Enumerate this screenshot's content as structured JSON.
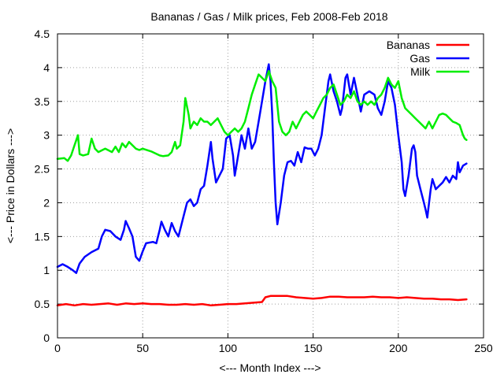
{
  "chart_data": {
    "type": "line",
    "title": "Bananas / Gas / Milk prices, Feb 2008-Feb 2018",
    "xlabel": "<--- Month Index --->",
    "ylabel": "<--- Price in Dollars --->",
    "xlim": [
      0,
      250
    ],
    "ylim": [
      0,
      4.5
    ],
    "xticks": [
      0,
      50,
      100,
      150,
      200,
      250
    ],
    "xtick_labels": [
      "0",
      "50",
      "100",
      "150",
      "200",
      "250"
    ],
    "yticks": [
      0,
      0.5,
      1,
      1.5,
      2,
      2.5,
      3,
      3.5,
      4,
      4.5
    ],
    "ytick_labels": [
      "0",
      "0.5",
      "1",
      "1.5",
      "2",
      "2.5",
      "3",
      "3.5",
      "4",
      "4.5"
    ],
    "grid": true,
    "legend_position": "top-right",
    "series": [
      {
        "name": "Bananas",
        "color": "#ff0000",
        "points": [
          [
            0,
            0.48
          ],
          [
            5,
            0.5
          ],
          [
            10,
            0.48
          ],
          [
            15,
            0.5
          ],
          [
            20,
            0.49
          ],
          [
            25,
            0.5
          ],
          [
            30,
            0.51
          ],
          [
            35,
            0.49
          ],
          [
            40,
            0.51
          ],
          [
            45,
            0.5
          ],
          [
            50,
            0.51
          ],
          [
            55,
            0.5
          ],
          [
            60,
            0.5
          ],
          [
            65,
            0.49
          ],
          [
            70,
            0.49
          ],
          [
            75,
            0.5
          ],
          [
            80,
            0.49
          ],
          [
            85,
            0.5
          ],
          [
            90,
            0.48
          ],
          [
            95,
            0.49
          ],
          [
            100,
            0.5
          ],
          [
            105,
            0.5
          ],
          [
            110,
            0.51
          ],
          [
            115,
            0.52
          ],
          [
            120,
            0.53
          ],
          [
            122,
            0.6
          ],
          [
            125,
            0.62
          ],
          [
            130,
            0.62
          ],
          [
            135,
            0.62
          ],
          [
            140,
            0.6
          ],
          [
            145,
            0.59
          ],
          [
            150,
            0.58
          ],
          [
            155,
            0.59
          ],
          [
            160,
            0.61
          ],
          [
            165,
            0.61
          ],
          [
            170,
            0.6
          ],
          [
            175,
            0.6
          ],
          [
            180,
            0.6
          ],
          [
            185,
            0.61
          ],
          [
            190,
            0.6
          ],
          [
            195,
            0.6
          ],
          [
            200,
            0.59
          ],
          [
            205,
            0.6
          ],
          [
            210,
            0.59
          ],
          [
            215,
            0.58
          ],
          [
            220,
            0.58
          ],
          [
            225,
            0.57
          ],
          [
            230,
            0.57
          ],
          [
            235,
            0.56
          ],
          [
            240,
            0.57
          ]
        ]
      },
      {
        "name": "Gas",
        "color": "#0000ff",
        "points": [
          [
            0,
            1.05
          ],
          [
            3,
            1.09
          ],
          [
            6,
            1.05
          ],
          [
            9,
            1.0
          ],
          [
            11,
            0.96
          ],
          [
            13,
            1.1
          ],
          [
            16,
            1.2
          ],
          [
            20,
            1.27
          ],
          [
            24,
            1.32
          ],
          [
            26,
            1.5
          ],
          [
            28,
            1.6
          ],
          [
            31,
            1.58
          ],
          [
            34,
            1.5
          ],
          [
            37,
            1.45
          ],
          [
            39,
            1.6
          ],
          [
            40,
            1.73
          ],
          [
            42,
            1.62
          ],
          [
            44,
            1.5
          ],
          [
            46,
            1.2
          ],
          [
            48,
            1.14
          ],
          [
            50,
            1.28
          ],
          [
            52,
            1.4
          ],
          [
            56,
            1.42
          ],
          [
            58,
            1.4
          ],
          [
            60,
            1.6
          ],
          [
            61,
            1.72
          ],
          [
            63,
            1.6
          ],
          [
            65,
            1.5
          ],
          [
            67,
            1.7
          ],
          [
            69,
            1.58
          ],
          [
            71,
            1.5
          ],
          [
            74,
            1.8
          ],
          [
            76,
            2.0
          ],
          [
            78,
            2.05
          ],
          [
            80,
            1.95
          ],
          [
            82,
            2.0
          ],
          [
            84,
            2.2
          ],
          [
            86,
            2.25
          ],
          [
            88,
            2.55
          ],
          [
            90,
            2.9
          ],
          [
            91,
            2.65
          ],
          [
            93,
            2.3
          ],
          [
            95,
            2.4
          ],
          [
            97,
            2.5
          ],
          [
            99,
            2.95
          ],
          [
            101,
            3.0
          ],
          [
            103,
            2.7
          ],
          [
            104,
            2.4
          ],
          [
            106,
            2.7
          ],
          [
            108,
            3.0
          ],
          [
            110,
            2.8
          ],
          [
            112,
            3.1
          ],
          [
            114,
            2.8
          ],
          [
            116,
            2.9
          ],
          [
            118,
            3.2
          ],
          [
            120,
            3.5
          ],
          [
            122,
            3.8
          ],
          [
            124,
            4.05
          ],
          [
            125,
            3.8
          ],
          [
            126,
            3.3
          ],
          [
            127,
            2.6
          ],
          [
            128,
            2.0
          ],
          [
            129,
            1.68
          ],
          [
            131,
            2.0
          ],
          [
            133,
            2.4
          ],
          [
            135,
            2.6
          ],
          [
            137,
            2.62
          ],
          [
            139,
            2.55
          ],
          [
            141,
            2.75
          ],
          [
            143,
            2.6
          ],
          [
            145,
            2.82
          ],
          [
            147,
            2.8
          ],
          [
            149,
            2.8
          ],
          [
            151,
            2.7
          ],
          [
            153,
            2.8
          ],
          [
            155,
            3.0
          ],
          [
            157,
            3.4
          ],
          [
            159,
            3.8
          ],
          [
            160,
            3.9
          ],
          [
            162,
            3.65
          ],
          [
            164,
            3.5
          ],
          [
            166,
            3.3
          ],
          [
            167,
            3.4
          ],
          [
            169,
            3.85
          ],
          [
            170,
            3.9
          ],
          [
            172,
            3.6
          ],
          [
            174,
            3.85
          ],
          [
            176,
            3.6
          ],
          [
            178,
            3.35
          ],
          [
            180,
            3.6
          ],
          [
            183,
            3.65
          ],
          [
            186,
            3.6
          ],
          [
            188,
            3.4
          ],
          [
            190,
            3.3
          ],
          [
            192,
            3.5
          ],
          [
            194,
            3.8
          ],
          [
            196,
            3.7
          ],
          [
            198,
            3.45
          ],
          [
            200,
            3.0
          ],
          [
            202,
            2.6
          ],
          [
            203,
            2.2
          ],
          [
            204,
            2.1
          ],
          [
            206,
            2.4
          ],
          [
            208,
            2.8
          ],
          [
            209,
            2.85
          ],
          [
            210,
            2.75
          ],
          [
            211,
            2.4
          ],
          [
            213,
            2.2
          ],
          [
            215,
            2.0
          ],
          [
            216,
            1.9
          ],
          [
            217,
            1.78
          ],
          [
            219,
            2.2
          ],
          [
            220,
            2.35
          ],
          [
            222,
            2.2
          ],
          [
            224,
            2.25
          ],
          [
            226,
            2.3
          ],
          [
            228,
            2.38
          ],
          [
            230,
            2.3
          ],
          [
            232,
            2.4
          ],
          [
            234,
            2.35
          ],
          [
            235,
            2.6
          ],
          [
            236,
            2.45
          ],
          [
            238,
            2.55
          ],
          [
            240,
            2.58
          ]
        ]
      },
      {
        "name": "Milk",
        "color": "#00ee00",
        "points": [
          [
            0,
            2.65
          ],
          [
            4,
            2.66
          ],
          [
            6,
            2.62
          ],
          [
            8,
            2.7
          ],
          [
            10,
            2.85
          ],
          [
            12,
            3.0
          ],
          [
            13,
            2.72
          ],
          [
            15,
            2.7
          ],
          [
            18,
            2.72
          ],
          [
            20,
            2.95
          ],
          [
            22,
            2.8
          ],
          [
            24,
            2.75
          ],
          [
            28,
            2.8
          ],
          [
            32,
            2.75
          ],
          [
            34,
            2.83
          ],
          [
            36,
            2.75
          ],
          [
            38,
            2.88
          ],
          [
            40,
            2.82
          ],
          [
            42,
            2.9
          ],
          [
            44,
            2.85
          ],
          [
            46,
            2.8
          ],
          [
            48,
            2.78
          ],
          [
            50,
            2.8
          ],
          [
            55,
            2.76
          ],
          [
            60,
            2.7
          ],
          [
            62,
            2.69
          ],
          [
            65,
            2.7
          ],
          [
            67,
            2.75
          ],
          [
            69,
            2.9
          ],
          [
            70,
            2.8
          ],
          [
            72,
            2.85
          ],
          [
            74,
            3.2
          ],
          [
            75,
            3.55
          ],
          [
            77,
            3.3
          ],
          [
            78,
            3.1
          ],
          [
            80,
            3.2
          ],
          [
            82,
            3.15
          ],
          [
            84,
            3.25
          ],
          [
            86,
            3.2
          ],
          [
            88,
            3.2
          ],
          [
            90,
            3.15
          ],
          [
            92,
            3.2
          ],
          [
            94,
            3.25
          ],
          [
            96,
            3.15
          ],
          [
            98,
            3.05
          ],
          [
            100,
            3.0
          ],
          [
            102,
            3.05
          ],
          [
            104,
            3.1
          ],
          [
            106,
            3.05
          ],
          [
            108,
            3.1
          ],
          [
            110,
            3.2
          ],
          [
            112,
            3.4
          ],
          [
            114,
            3.6
          ],
          [
            116,
            3.75
          ],
          [
            118,
            3.9
          ],
          [
            120,
            3.85
          ],
          [
            122,
            3.8
          ],
          [
            124,
            3.95
          ],
          [
            126,
            3.8
          ],
          [
            128,
            3.7
          ],
          [
            130,
            3.2
          ],
          [
            132,
            3.05
          ],
          [
            134,
            3.0
          ],
          [
            136,
            3.05
          ],
          [
            138,
            3.2
          ],
          [
            140,
            3.1
          ],
          [
            142,
            3.2
          ],
          [
            144,
            3.3
          ],
          [
            146,
            3.35
          ],
          [
            148,
            3.3
          ],
          [
            150,
            3.25
          ],
          [
            152,
            3.35
          ],
          [
            154,
            3.45
          ],
          [
            156,
            3.55
          ],
          [
            158,
            3.6
          ],
          [
            160,
            3.7
          ],
          [
            162,
            3.75
          ],
          [
            164,
            3.6
          ],
          [
            166,
            3.45
          ],
          [
            168,
            3.5
          ],
          [
            170,
            3.6
          ],
          [
            172,
            3.55
          ],
          [
            174,
            3.65
          ],
          [
            176,
            3.5
          ],
          [
            178,
            3.45
          ],
          [
            180,
            3.5
          ],
          [
            182,
            3.45
          ],
          [
            184,
            3.5
          ],
          [
            186,
            3.45
          ],
          [
            188,
            3.55
          ],
          [
            190,
            3.6
          ],
          [
            192,
            3.7
          ],
          [
            194,
            3.85
          ],
          [
            196,
            3.75
          ],
          [
            198,
            3.7
          ],
          [
            200,
            3.8
          ],
          [
            202,
            3.55
          ],
          [
            204,
            3.4
          ],
          [
            206,
            3.35
          ],
          [
            208,
            3.3
          ],
          [
            210,
            3.25
          ],
          [
            212,
            3.2
          ],
          [
            214,
            3.15
          ],
          [
            216,
            3.1
          ],
          [
            218,
            3.2
          ],
          [
            220,
            3.1
          ],
          [
            222,
            3.2
          ],
          [
            224,
            3.3
          ],
          [
            226,
            3.32
          ],
          [
            228,
            3.3
          ],
          [
            230,
            3.25
          ],
          [
            232,
            3.2
          ],
          [
            234,
            3.18
          ],
          [
            236,
            3.15
          ],
          [
            238,
            3.0
          ],
          [
            239,
            2.95
          ],
          [
            240,
            2.93
          ]
        ]
      }
    ]
  }
}
